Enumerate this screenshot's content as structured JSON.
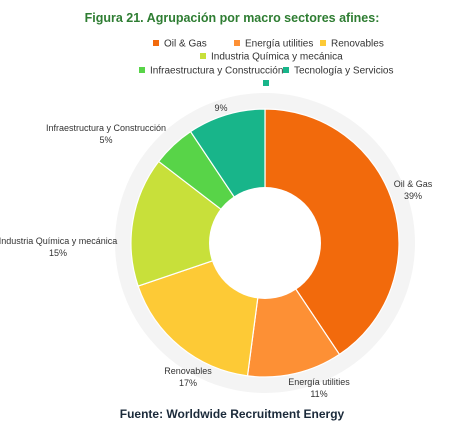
{
  "chart_data": {
    "type": "pie",
    "title": "Figura 21. Agrupación por macro sectores afines:",
    "source": "Fuente: Worldwide Recruitment Energy",
    "categories": [
      "Oil & Gas",
      "Energía utilities",
      "Renovables",
      "Industria Química y mecánica",
      "Infraestructura y Construcción",
      "Tecnología y Servicios"
    ],
    "values": [
      39,
      11,
      17,
      15,
      5,
      9
    ],
    "value_labels": [
      "39%",
      "11%",
      "17%",
      "15%",
      "5%",
      "9%"
    ],
    "colors": [
      "#f26a0c",
      "#fd9035",
      "#fdca36",
      "#c8e03a",
      "#58d448",
      "#18b58a"
    ],
    "title_color": "#2e7d32",
    "legend_position": "top",
    "donut": true
  }
}
